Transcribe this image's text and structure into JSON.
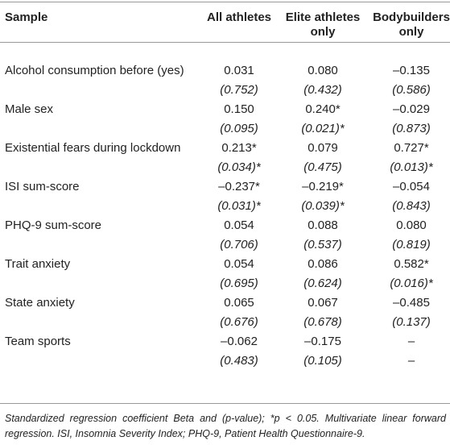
{
  "table": {
    "header": [
      "Sample",
      "All athletes",
      "Elite athletes only",
      "Bodybuilders only"
    ],
    "rows": [
      {
        "label": "Alcohol consumption before (yes)",
        "values": [
          "0.031",
          "0.080",
          "–0.135"
        ],
        "p_values": [
          "(0.752)",
          "(0.432)",
          "(0.586)"
        ]
      },
      {
        "label": "Male sex",
        "values": [
          "0.150",
          "0.240*",
          "–0.029"
        ],
        "p_values": [
          "(0.095)",
          "(0.021)*",
          "(0.873)"
        ]
      },
      {
        "label": "Existential fears during lockdown",
        "values": [
          "0.213*",
          "0.079",
          "0.727*"
        ],
        "p_values": [
          "(0.034)*",
          "(0.475)",
          "(0.013)*"
        ]
      },
      {
        "label": "ISI sum-score",
        "values": [
          "–0.237*",
          "–0.219*",
          "–0.054"
        ],
        "p_values": [
          "(0.031)*",
          "(0.039)*",
          "(0.843)"
        ]
      },
      {
        "label": "PHQ-9 sum-score",
        "values": [
          "0.054",
          "0.088",
          "0.080"
        ],
        "p_values": [
          "(0.706)",
          "(0.537)",
          "(0.819)"
        ]
      },
      {
        "label": "Trait anxiety",
        "values": [
          "0.054",
          "0.086",
          "0.582*"
        ],
        "p_values": [
          "(0.695)",
          "(0.624)",
          "(0.016)*"
        ]
      },
      {
        "label": "State anxiety",
        "values": [
          "0.065",
          "0.067",
          "–0.485"
        ],
        "p_values": [
          "(0.676)",
          "(0.678)",
          "(0.137)"
        ]
      },
      {
        "label": "Team sports",
        "values": [
          "–0.062",
          "–0.175",
          "–"
        ],
        "p_values": [
          "(0.483)",
          "(0.105)",
          "–"
        ]
      }
    ]
  },
  "footnote": "Standardized regression coefficient Beta and (p-value); *p < 0.05. Multivariate linear forward regression. ISI, Insomnia Severity Index; PHQ-9, Patient Health Questionnaire-9."
}
